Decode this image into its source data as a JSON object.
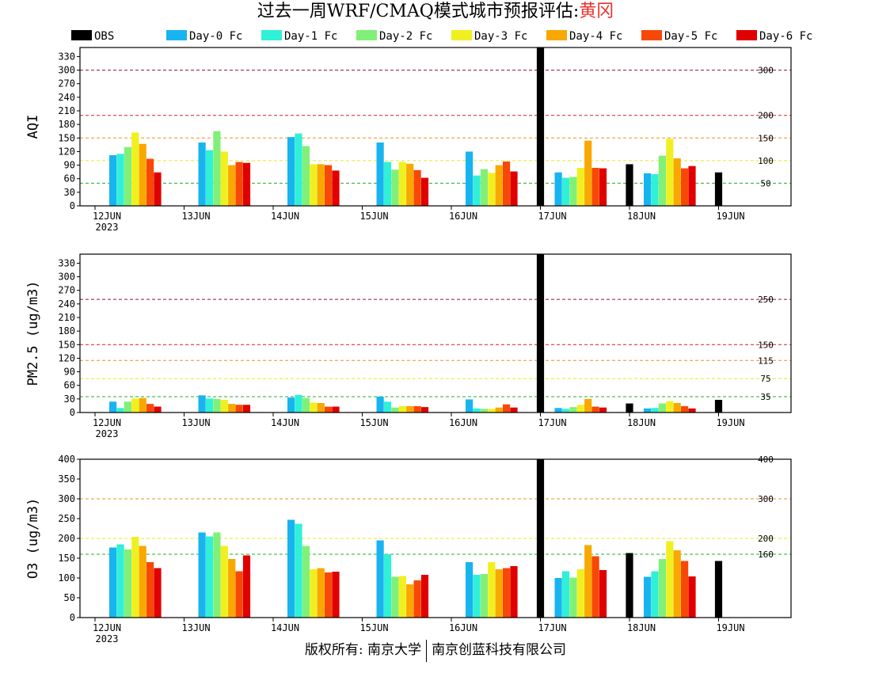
{
  "header": {
    "title_prefix": "过去一周WRF/CMAQ模式城市预报评估:",
    "city": "黄冈"
  },
  "footer": {
    "left": "版权所有: 南京大学",
    "right": "南京创蓝科技有限公司"
  },
  "legend": [
    {
      "name": "OBS",
      "color": "#000000"
    },
    {
      "name": "Day-0 Fc",
      "color": "#18b4f0"
    },
    {
      "name": "Day-1 Fc",
      "color": "#30f0d8"
    },
    {
      "name": "Day-2 Fc",
      "color": "#80f078"
    },
    {
      "name": "Day-3 Fc",
      "color": "#f0f020"
    },
    {
      "name": "Day-4 Fc",
      "color": "#f8a800"
    },
    {
      "name": "Day-5 Fc",
      "color": "#f84808"
    },
    {
      "name": "Day-6 Fc",
      "color": "#e00000"
    }
  ],
  "chart_data": [
    {
      "type": "bar",
      "ylabel": "AQI",
      "ylim": [
        0,
        350
      ],
      "yticks": [
        0,
        30,
        60,
        90,
        120,
        150,
        180,
        210,
        240,
        270,
        300,
        330
      ],
      "categories": [
        "12JUN",
        "13JUN",
        "14JUN",
        "15JUN",
        "16JUN",
        "17JUN",
        "18JUN",
        "19JUN"
      ],
      "year_label": "2023",
      "thresholds": [
        {
          "value": 50,
          "label": "50",
          "color": "#20b020"
        },
        {
          "value": 100,
          "label": "100",
          "color": "#e8e820"
        },
        {
          "value": 150,
          "label": "150",
          "color": "#f09020"
        },
        {
          "value": 200,
          "label": "200",
          "color": "#d02020"
        },
        {
          "value": 300,
          "label": "300",
          "color": "#901030"
        }
      ],
      "series": [
        {
          "name": "OBS",
          "values": [
            null,
            null,
            null,
            null,
            null,
            350,
            92,
            74
          ]
        },
        {
          "name": "Day-0 Fc",
          "values": [
            112,
            140,
            152,
            140,
            120,
            74,
            72,
            null
          ]
        },
        {
          "name": "Day-1 Fc",
          "values": [
            115,
            123,
            160,
            97,
            67,
            62,
            70,
            null
          ]
        },
        {
          "name": "Day-2 Fc",
          "values": [
            130,
            165,
            132,
            80,
            81,
            64,
            111,
            null
          ]
        },
        {
          "name": "Day-3 Fc",
          "values": [
            162,
            120,
            92,
            97,
            73,
            84,
            148,
            null
          ]
        },
        {
          "name": "Day-4 Fc",
          "values": [
            137,
            90,
            92,
            93,
            90,
            144,
            105,
            null
          ]
        },
        {
          "name": "Day-5 Fc",
          "values": [
            104,
            97,
            90,
            79,
            98,
            84,
            83,
            null
          ]
        },
        {
          "name": "Day-6 Fc",
          "values": [
            74,
            95,
            78,
            62,
            76,
            83,
            88,
            null
          ]
        }
      ]
    },
    {
      "type": "bar",
      "ylabel": "PM2.5 (ug/m3)",
      "ylim": [
        0,
        350
      ],
      "yticks": [
        0,
        30,
        60,
        90,
        120,
        150,
        180,
        210,
        240,
        270,
        300,
        330
      ],
      "categories": [
        "12JUN",
        "13JUN",
        "14JUN",
        "15JUN",
        "16JUN",
        "17JUN",
        "18JUN",
        "19JUN"
      ],
      "year_label": "2023",
      "thresholds": [
        {
          "value": 35,
          "label": "35",
          "color": "#20b020"
        },
        {
          "value": 75,
          "label": "75",
          "color": "#e8e820"
        },
        {
          "value": 115,
          "label": "115",
          "color": "#f09020"
        },
        {
          "value": 150,
          "label": "150",
          "color": "#d02020"
        },
        {
          "value": 250,
          "label": "250",
          "color": "#901030"
        }
      ],
      "series": [
        {
          "name": "OBS",
          "values": [
            null,
            null,
            null,
            null,
            null,
            350,
            20,
            28
          ]
        },
        {
          "name": "Day-0 Fc",
          "values": [
            24,
            38,
            33,
            35,
            29,
            10,
            9,
            null
          ]
        },
        {
          "name": "Day-1 Fc",
          "values": [
            10,
            31,
            39,
            24,
            9,
            8,
            10,
            null
          ]
        },
        {
          "name": "Day-2 Fc",
          "values": [
            24,
            30,
            32,
            11,
            8,
            12,
            20,
            null
          ]
        },
        {
          "name": "Day-3 Fc",
          "values": [
            31,
            28,
            22,
            14,
            8,
            17,
            25,
            null
          ]
        },
        {
          "name": "Day-4 Fc",
          "values": [
            32,
            19,
            21,
            14,
            11,
            30,
            21,
            null
          ]
        },
        {
          "name": "Day-5 Fc",
          "values": [
            19,
            17,
            13,
            14,
            18,
            13,
            14,
            null
          ]
        },
        {
          "name": "Day-6 Fc",
          "values": [
            13,
            17,
            13,
            12,
            11,
            11,
            9,
            null
          ]
        }
      ]
    },
    {
      "type": "bar",
      "ylabel": "O3 (ug/m3)",
      "ylim": [
        0,
        400
      ],
      "yticks": [
        0,
        50,
        100,
        150,
        200,
        250,
        300,
        350,
        400
      ],
      "categories": [
        "12JUN",
        "13JUN",
        "14JUN",
        "15JUN",
        "16JUN",
        "17JUN",
        "18JUN",
        "19JUN"
      ],
      "year_label": "2023",
      "thresholds": [
        {
          "value": 160,
          "label": "160",
          "color": "#20b020"
        },
        {
          "value": 200,
          "label": "200",
          "color": "#e8e820"
        },
        {
          "value": 300,
          "label": "300",
          "color": "#f09020"
        },
        {
          "value": 400,
          "label": "400",
          "color": "#d02020"
        }
      ],
      "series": [
        {
          "name": "OBS",
          "values": [
            null,
            null,
            null,
            null,
            null,
            400,
            163,
            143
          ]
        },
        {
          "name": "Day-0 Fc",
          "values": [
            177,
            215,
            247,
            195,
            140,
            100,
            103,
            null
          ]
        },
        {
          "name": "Day-1 Fc",
          "values": [
            185,
            205,
            237,
            160,
            108,
            117,
            117,
            null
          ]
        },
        {
          "name": "Day-2 Fc",
          "values": [
            172,
            215,
            181,
            103,
            110,
            101,
            148,
            null
          ]
        },
        {
          "name": "Day-3 Fc",
          "values": [
            204,
            181,
            122,
            105,
            140,
            122,
            193,
            null
          ]
        },
        {
          "name": "Day-4 Fc",
          "values": [
            181,
            148,
            125,
            84,
            122,
            183,
            170,
            null
          ]
        },
        {
          "name": "Day-5 Fc",
          "values": [
            140,
            117,
            114,
            94,
            125,
            155,
            143,
            null
          ]
        },
        {
          "name": "Day-6 Fc",
          "values": [
            125,
            157,
            116,
            108,
            130,
            120,
            104,
            null
          ]
        }
      ]
    }
  ]
}
